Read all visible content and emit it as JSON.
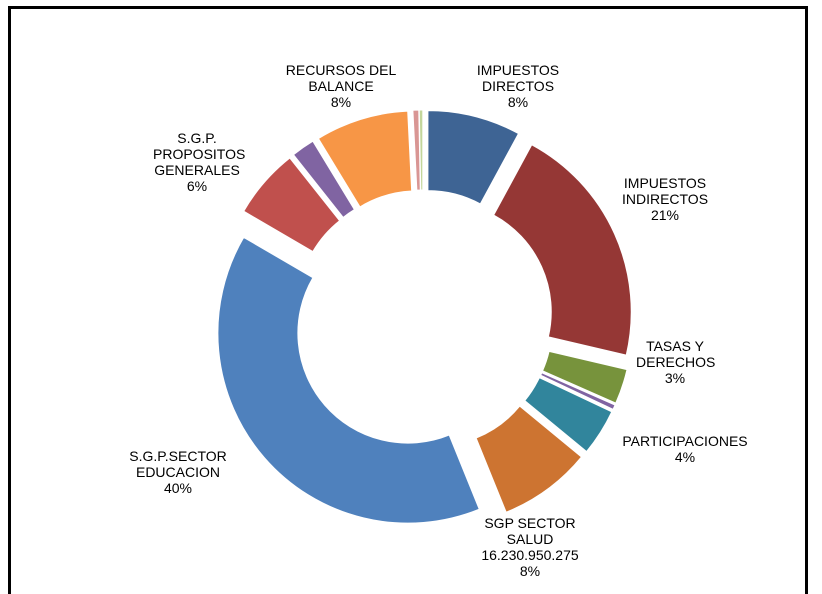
{
  "chart_data": {
    "type": "donut",
    "categories": [
      "IMPUESTOS DIRECTOS",
      "IMPUESTOS INDIRECTOS",
      "TASAS Y DERECHOS",
      null,
      "PARTICIPACIONES",
      "SGP SECTOR SALUD",
      "S.G.P.SECTOR EDUCACION",
      "S.G.P. PROPOSITOS GENERALES",
      null,
      "RECURSOS DEL BALANCE",
      null,
      null
    ],
    "values": [
      8,
      21,
      3,
      0.4,
      4,
      8,
      40,
      6,
      2,
      8,
      0.5,
      0.3
    ],
    "value_labels": [
      "8%",
      "21%",
      "3%",
      null,
      "4%",
      "8%",
      "40%",
      "6%",
      null,
      "8%",
      null,
      null
    ],
    "amount_labels": [
      null,
      null,
      null,
      null,
      null,
      "16.230.950.275",
      null,
      null,
      null,
      null,
      null,
      null
    ],
    "colors": [
      "#3e6494",
      "#953735",
      "#77933c",
      "#8064a2",
      "#31859c",
      "#cd7431",
      "#4f81bd",
      "#c0504d",
      "#8064a2",
      "#f79646",
      "#d99694",
      "#c3d69b"
    ]
  }
}
